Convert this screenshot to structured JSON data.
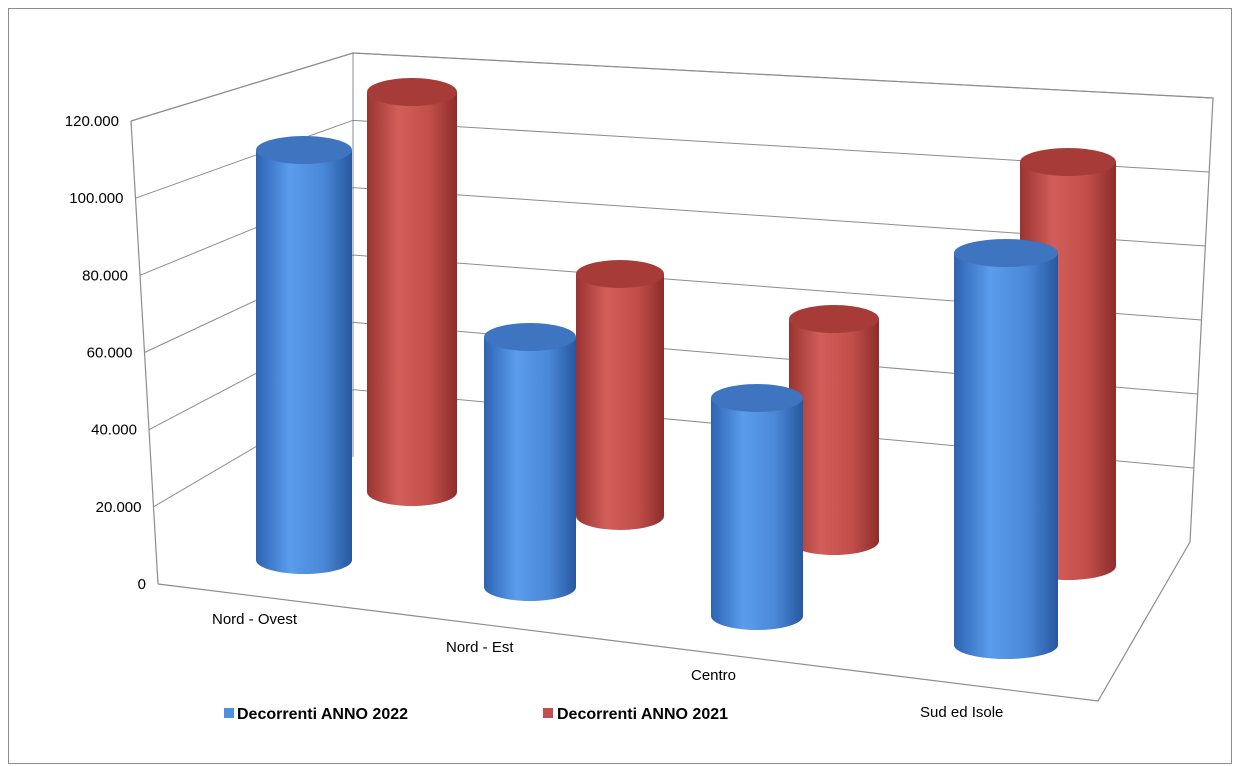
{
  "chart_data": {
    "type": "bar",
    "subtype": "3d-cylinder",
    "categories": [
      "Nord - Ovest",
      "Nord - Est",
      "Centro",
      "Sud ed Isole"
    ],
    "series": [
      {
        "name": "Decorrenti ANNO 2022",
        "color": "#4f8fdc",
        "values": [
          111000,
          76000,
          64000,
          108000
        ]
      },
      {
        "name": "Decorrenti ANNO 2021",
        "color": "#c0504d",
        "values": [
          114000,
          75000,
          72000,
          117000
        ]
      }
    ],
    "y_ticks": [
      "0",
      "20.000",
      "40.000",
      "60.000",
      "80.000",
      "100.000",
      "120.000"
    ],
    "ylim": [
      0,
      120000
    ],
    "grid": true,
    "legend": "bottom-left"
  }
}
